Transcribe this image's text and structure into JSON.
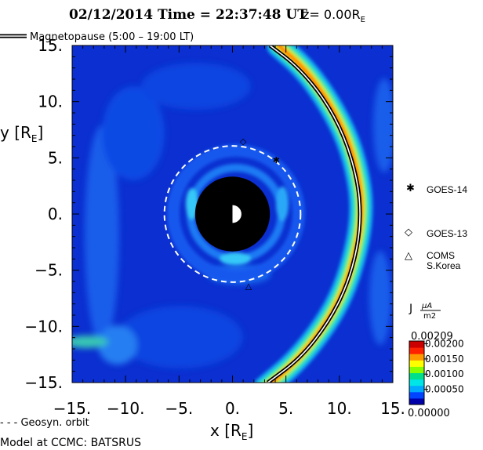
{
  "header": {
    "title_prefix": "02/12/2014 Time = 22:37:48 UT",
    "z_label": "z= 0.00R",
    "z_subscript": "E"
  },
  "legend": {
    "magnetopause_label": "Magnetopause (5:00 – 19:00 LT)",
    "geosyn_label": "- - - Geosyn. orbit",
    "model_label": "Model at CCMC: BATSRUS"
  },
  "spacecraft": [
    {
      "symbol": "✱",
      "name": "GOES-14"
    },
    {
      "symbol": "◇",
      "name": "GOES-13"
    },
    {
      "symbol": "△",
      "name": "COMS",
      "name_line2": "S.Korea"
    }
  ],
  "colorbar": {
    "title_J": "J",
    "unit_num": "μA",
    "unit_den": "m2",
    "max_label": "0.00209",
    "min_label": "0.00000",
    "ticks": [
      "0.00200",
      "0.00150",
      "0.00100",
      "0.00050"
    ],
    "colors": [
      "#0000aa",
      "#0044ff",
      "#00aaff",
      "#00e5e5",
      "#00e08a",
      "#88ff00",
      "#ffff00",
      "#ff9900",
      "#ff2200",
      "#cc0000"
    ]
  },
  "chart_data": {
    "type": "heatmap",
    "title": "02/12/2014 Time = 22:37:48 UT z= 0.00RE",
    "xlabel": "x [RE]",
    "ylabel": "y [RE]",
    "xlim": [
      -15,
      15
    ],
    "ylim": [
      -15,
      15
    ],
    "x_ticks": [
      "-15.",
      "-10.",
      "-5.",
      "0.",
      "5.",
      "10.",
      "15."
    ],
    "y_ticks": [
      "15.",
      "10.",
      "5.",
      "0.",
      "-5.",
      "-10.",
      "-15."
    ],
    "x_tick_values": [
      -15,
      -10,
      -5,
      0,
      5,
      10,
      15
    ],
    "y_tick_values": [
      15,
      10,
      5,
      0,
      -5,
      -10,
      -15
    ],
    "colorbar_range": [
      0.0,
      0.00209
    ],
    "geosynchronous_orbit_radius_RE": 6.6,
    "inner_boundary_radius_RE": 3.5,
    "magnetopause_points": [
      [
        3.5,
        15
      ],
      [
        6.0,
        13.2
      ],
      [
        8.5,
        10.4
      ],
      [
        10.5,
        6.9
      ],
      [
        11.7,
        3.0
      ],
      [
        12.0,
        0.0
      ],
      [
        11.7,
        -3.0
      ],
      [
        10.7,
        -6.4
      ],
      [
        9.0,
        -9.6
      ],
      [
        6.4,
        -12.8
      ],
      [
        3.3,
        -15
      ]
    ],
    "current_band_points": [
      [
        4.3,
        15
      ],
      [
        6.7,
        13.0
      ],
      [
        9.0,
        10.0
      ],
      [
        10.9,
        6.5
      ],
      [
        11.9,
        2.8
      ],
      [
        12.1,
        0.0
      ],
      [
        11.6,
        -3.2
      ],
      [
        10.4,
        -6.9
      ],
      [
        8.6,
        -10.0
      ],
      [
        5.9,
        -13.2
      ],
      [
        3.0,
        -15.5
      ]
    ],
    "spacecraft_positions": [
      {
        "name": "GOES-14",
        "x": 4.1,
        "y": 4.8
      },
      {
        "name": "GOES-13",
        "x": 1.0,
        "y": 6.5
      },
      {
        "name": "COMS",
        "x": 1.5,
        "y": -6.4
      }
    ]
  }
}
